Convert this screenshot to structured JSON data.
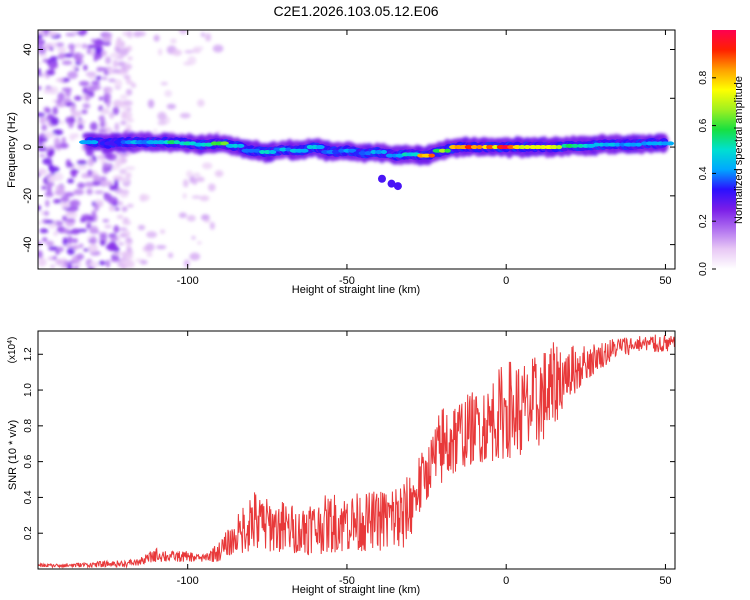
{
  "title": "C2E1.2026.103.05.12.E06",
  "chart_data": [
    {
      "type": "heatmap",
      "xlabel": "Height of straight line (km)",
      "ylabel": "Frequency (Hz)",
      "xlim": [
        -147,
        53
      ],
      "ylim": [
        -50,
        48
      ],
      "xticks": [
        -100,
        -50,
        0,
        50
      ],
      "yticks": [
        -40,
        -20,
        0,
        20,
        40
      ],
      "colorbar": {
        "label": "Normalized spectral amplitude",
        "range": [
          0.0,
          1.0
        ],
        "ticks": [
          "0.0",
          "0.2",
          "0.4",
          "0.6",
          "0.8"
        ],
        "colors": [
          "#ffffff",
          "#e8c8f5",
          "#b070f0",
          "#7a1de8",
          "#2a10ff",
          "#00a8ff",
          "#00e0d0",
          "#18e040",
          "#a0f020",
          "#ffff00",
          "#ffa000",
          "#ff2000",
          "#ff0050"
        ]
      },
      "noise_region_km": [
        -147,
        -110
      ],
      "signal_track": [
        {
          "x": -131,
          "freq": 2,
          "amp": 0.45
        },
        {
          "x": -125,
          "freq": 1.5,
          "amp": 0.35
        },
        {
          "x": -120,
          "freq": 2,
          "amp": 0.4
        },
        {
          "x": -115,
          "freq": 2,
          "amp": 0.45
        },
        {
          "x": -110,
          "freq": 2,
          "amp": 0.5
        },
        {
          "x": -105,
          "freq": 2,
          "amp": 0.55
        },
        {
          "x": -100,
          "freq": 1.5,
          "amp": 0.55
        },
        {
          "x": -95,
          "freq": 1,
          "amp": 0.5
        },
        {
          "x": -90,
          "freq": 1.5,
          "amp": 0.65
        },
        {
          "x": -85,
          "freq": 0.5,
          "amp": 0.5
        },
        {
          "x": -80,
          "freq": -1.5,
          "amp": 0.45
        },
        {
          "x": -75,
          "freq": -2,
          "amp": 0.5
        },
        {
          "x": -70,
          "freq": -1,
          "amp": 0.45
        },
        {
          "x": -65,
          "freq": -1.5,
          "amp": 0.5
        },
        {
          "x": -60,
          "freq": 0,
          "amp": 0.45
        },
        {
          "x": -55,
          "freq": -2,
          "amp": 0.4
        },
        {
          "x": -50,
          "freq": -1.5,
          "amp": 0.45
        },
        {
          "x": -45,
          "freq": -2.5,
          "amp": 0.4
        },
        {
          "x": -40,
          "freq": -2,
          "amp": 0.45
        },
        {
          "x": -35,
          "freq": -3.5,
          "amp": 0.45
        },
        {
          "x": -30,
          "freq": -3,
          "amp": 0.5
        },
        {
          "x": -25,
          "freq": -3.5,
          "amp": 0.85
        },
        {
          "x": -20,
          "freq": -1.5,
          "amp": 0.65
        },
        {
          "x": -15,
          "freq": 0,
          "amp": 0.9
        },
        {
          "x": -10,
          "freq": 0,
          "amp": 0.9
        },
        {
          "x": -5,
          "freq": 0,
          "amp": 0.85
        },
        {
          "x": 0,
          "freq": 0,
          "amp": 0.95
        },
        {
          "x": 5,
          "freq": 0,
          "amp": 0.8
        },
        {
          "x": 10,
          "freq": 0,
          "amp": 0.7
        },
        {
          "x": 15,
          "freq": 0,
          "amp": 0.75
        },
        {
          "x": 20,
          "freq": 0.5,
          "amp": 0.6
        },
        {
          "x": 25,
          "freq": 0.5,
          "amp": 0.5
        },
        {
          "x": 30,
          "freq": 1,
          "amp": 0.45
        },
        {
          "x": 35,
          "freq": 1,
          "amp": 0.45
        },
        {
          "x": 40,
          "freq": 1,
          "amp": 0.45
        },
        {
          "x": 45,
          "freq": 1.5,
          "amp": 0.45
        },
        {
          "x": 50,
          "freq": 1.5,
          "amp": 0.45
        }
      ],
      "side_blobs": [
        {
          "x": -39,
          "freq": -13,
          "amp": 0.3
        },
        {
          "x": -36,
          "freq": -15,
          "amp": 0.3
        },
        {
          "x": -34,
          "freq": -16,
          "amp": 0.3
        }
      ]
    },
    {
      "type": "line",
      "xlabel": "Height of straight line (km)",
      "ylabel": "SNR (10 * v/v)",
      "y_multiplier": "(x10⁴)",
      "y_multiplier_base": "(x10",
      "y_multiplier_exp": "4",
      "xlim": [
        -147,
        53
      ],
      "ylim": [
        0.0,
        1.33
      ],
      "xticks": [
        -100,
        -50,
        0,
        50
      ],
      "yticks": [
        0.2,
        0.4,
        0.6,
        0.8,
        1.0,
        1.2
      ],
      "ytick_labels": [
        "0.2",
        "0.4",
        "0.6",
        "0.8",
        "1.0",
        "1.2"
      ],
      "color": "#e8393a",
      "x": [
        -147,
        -140,
        -130,
        -120,
        -115,
        -110,
        -105,
        -100,
        -95,
        -90,
        -85,
        -80,
        -75,
        -70,
        -65,
        -60,
        -55,
        -50,
        -45,
        -40,
        -35,
        -32,
        -30,
        -28,
        -25,
        -20,
        -15,
        -10,
        -5,
        0,
        5,
        10,
        15,
        20,
        25,
        30,
        35,
        40,
        45,
        50,
        53
      ],
      "envelope_low": [
        0.01,
        0.01,
        0.01,
        0.01,
        0.02,
        0.04,
        0.04,
        0.04,
        0.04,
        0.04,
        0.08,
        0.1,
        0.1,
        0.09,
        0.08,
        0.08,
        0.09,
        0.1,
        0.1,
        0.1,
        0.12,
        0.08,
        0.18,
        0.28,
        0.38,
        0.48,
        0.55,
        0.58,
        0.6,
        0.62,
        0.62,
        0.68,
        0.8,
        0.95,
        1.05,
        1.12,
        1.18,
        1.2,
        1.21,
        1.21,
        1.22
      ],
      "envelope_high": [
        0.03,
        0.03,
        0.04,
        0.05,
        0.06,
        0.12,
        0.1,
        0.1,
        0.08,
        0.16,
        0.28,
        0.45,
        0.4,
        0.38,
        0.36,
        0.4,
        0.42,
        0.45,
        0.42,
        0.45,
        0.48,
        0.5,
        0.55,
        0.62,
        0.7,
        0.92,
        0.95,
        1.0,
        1.05,
        1.18,
        1.15,
        1.2,
        1.27,
        1.25,
        1.26,
        1.27,
        1.3,
        1.31,
        1.31,
        1.31,
        1.3
      ]
    }
  ]
}
